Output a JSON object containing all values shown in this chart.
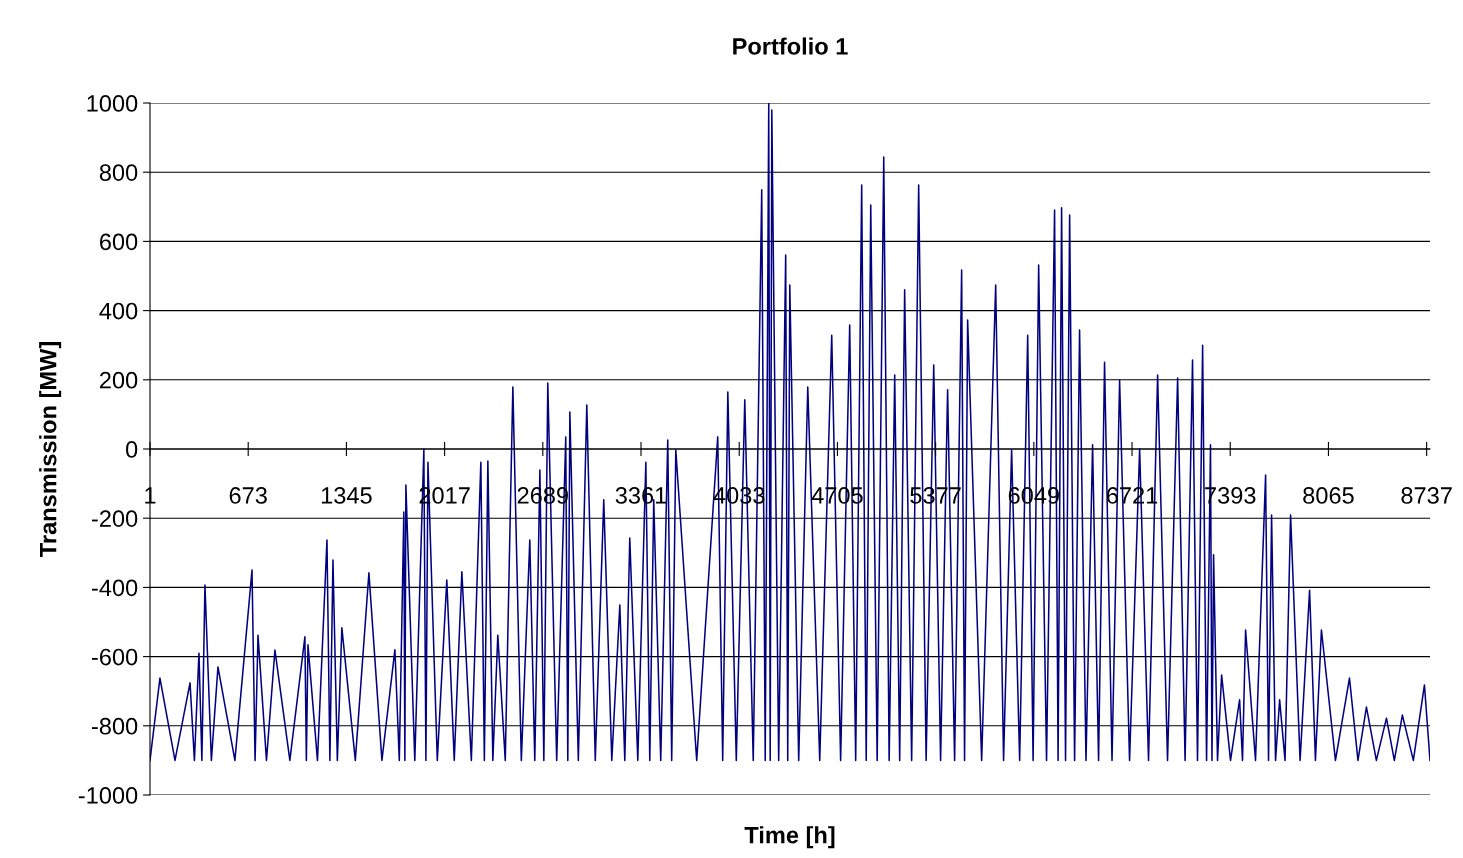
{
  "chart_data": {
    "type": "line",
    "title": "Portfolio 1",
    "xlabel": "Time [h]",
    "ylabel": "Transmission [MW]",
    "x": [
      1,
      69,
      172,
      275,
      305,
      336,
      356,
      377,
      421,
      466,
      582,
      699,
      720,
      740,
      798,
      856,
      958,
      1061,
      1071,
      1082,
      1147,
      1212,
      1232,
      1253,
      1283,
      1314,
      1406,
      1499,
      1588,
      1677,
      1707,
      1738,
      1745,
      1752,
      1813,
      1875,
      1889,
      1903,
      1967,
      2032,
      2083,
      2135,
      2200,
      2265,
      2289,
      2313,
      2347,
      2381,
      2432,
      2484,
      2542,
      2600,
      2634,
      2669,
      2696,
      2723,
      2784,
      2846,
      2860,
      2874,
      2932,
      2990,
      3048,
      3106,
      3161,
      3216,
      3250,
      3284,
      3339,
      3394,
      3421,
      3448,
      3496,
      3544,
      3571,
      3599,
      3742,
      3886,
      3920,
      3955,
      4013,
      4071,
      4129,
      4187,
      4211,
      4235,
      4245,
      4256,
      4303,
      4351,
      4365,
      4379,
      4440,
      4502,
      4584,
      4666,
      4727,
      4789,
      4830,
      4871,
      4902,
      4933,
      4977,
      5022,
      5059,
      5097,
      5131,
      5165,
      5213,
      5261,
      5312,
      5364,
      5411,
      5459,
      5507,
      5555,
      5575,
      5596,
      5692,
      5788,
      5842,
      5897,
      5952,
      6007,
      6044,
      6082,
      6136,
      6191,
      6215,
      6239,
      6266,
      6294,
      6328,
      6362,
      6406,
      6451,
      6492,
      6533,
      6584,
      6636,
      6704,
      6773,
      6834,
      6896,
      6964,
      7033,
      7084,
      7135,
      7169,
      7204,
      7231,
      7258,
      7268,
      7279,
      7306,
      7334,
      7395,
      7457,
      7477,
      7498,
      7566,
      7635,
      7655,
      7676,
      7703,
      7731,
      7768,
      7806,
      7871,
      7936,
      7976,
      8017,
      8113,
      8209,
      8267,
      8325,
      8393,
      8462,
      8516,
      8571,
      8646,
      8722,
      8760
    ],
    "series": [
      {
        "color": "#000080",
        "values": [
          -900,
          -662,
          -900,
          -676,
          -900,
          -590,
          -900,
          -393,
          -900,
          -630,
          -900,
          -350,
          -900,
          -538,
          -900,
          -581,
          -900,
          -543,
          -900,
          -566,
          -900,
          -263,
          -900,
          -321,
          -900,
          -517,
          -900,
          -358,
          -900,
          -580,
          -900,
          -182,
          -900,
          -104,
          -900,
          0,
          -900,
          -38,
          -900,
          -379,
          -900,
          -355,
          -900,
          -38,
          -900,
          -35,
          -900,
          -538,
          -900,
          179,
          -900,
          -263,
          -900,
          -61,
          -900,
          191,
          -900,
          35,
          -900,
          107,
          -900,
          127,
          -900,
          -147,
          -900,
          -451,
          -900,
          -257,
          -900,
          -38,
          -900,
          -147,
          -900,
          26,
          -900,
          -3,
          -900,
          35,
          -900,
          165,
          -900,
          142,
          -900,
          749,
          -900,
          1000,
          -900,
          980,
          -900,
          561,
          -900,
          474,
          -900,
          179,
          -900,
          329,
          -900,
          358,
          -900,
          763,
          -900,
          705,
          -900,
          844,
          -900,
          214,
          -900,
          460,
          -900,
          763,
          -900,
          243,
          -900,
          171,
          -900,
          517,
          -900,
          373,
          -900,
          474,
          -900,
          -3,
          -900,
          329,
          -900,
          532,
          -900,
          691,
          -900,
          697,
          -900,
          676,
          -900,
          344,
          -900,
          12,
          -900,
          251,
          -900,
          199,
          -900,
          0,
          -900,
          214,
          -900,
          205,
          -900,
          257,
          -900,
          300,
          -900,
          12,
          -900,
          -306,
          -900,
          -653,
          -900,
          -725,
          -900,
          -523,
          -900,
          -75,
          -900,
          -191,
          -900,
          -725,
          -900,
          -191,
          -900,
          -408,
          -900,
          -523,
          -900,
          -662,
          -900,
          -746,
          -900,
          -778,
          -900,
          -769,
          -900,
          -682,
          -900
        ]
      }
    ],
    "xlim": [
      1,
      8760
    ],
    "xticks": [
      1,
      673,
      1345,
      2017,
      2689,
      3361,
      4033,
      4705,
      5377,
      6049,
      6721,
      7393,
      8065,
      8737
    ],
    "ylim": [
      -1000,
      1000
    ],
    "yticks": [
      -1000,
      -800,
      -600,
      -400,
      -200,
      0,
      200,
      400,
      600,
      800,
      1000
    ],
    "grid": "y",
    "line_style": "solid",
    "marker": "none"
  }
}
